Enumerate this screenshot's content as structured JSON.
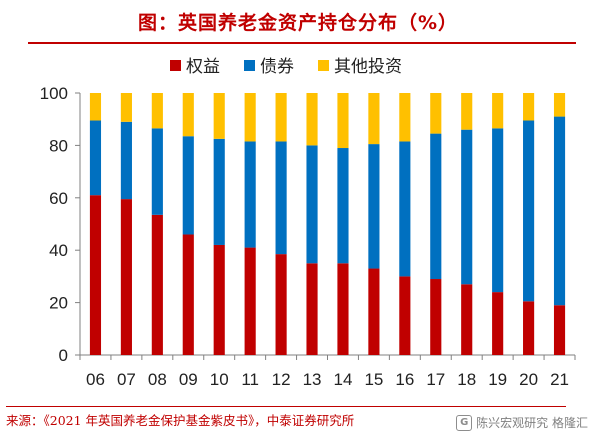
{
  "title": "图：英国养老金资产持仓分布（%）",
  "source": "来源：《2021 年英国养老金保护基金紫皮书》，中泰证券研究所",
  "watermark": "陈兴宏观研究 格隆汇",
  "chart_data": {
    "type": "bar",
    "stacked": true,
    "categories": [
      "06",
      "07",
      "08",
      "09",
      "10",
      "11",
      "12",
      "13",
      "14",
      "15",
      "16",
      "17",
      "18",
      "19",
      "20",
      "21"
    ],
    "series": [
      {
        "name": "权益",
        "color": "#c00000",
        "values": [
          61,
          59.5,
          53.5,
          46,
          42,
          41,
          38.5,
          35,
          35,
          33,
          30,
          29,
          27,
          24,
          20.5,
          19
        ]
      },
      {
        "name": "债券",
        "color": "#0070c0",
        "values": [
          28.5,
          29.5,
          33,
          37.5,
          40.5,
          40.5,
          43,
          45,
          44,
          47.5,
          51.5,
          55.5,
          59,
          62.5,
          69,
          72
        ]
      },
      {
        "name": "其他投资",
        "color": "#ffc000",
        "values": [
          10.5,
          11,
          13.5,
          16.5,
          17.5,
          18.5,
          18.5,
          20,
          21,
          19.5,
          18.5,
          15.5,
          14,
          13.5,
          10.5,
          9
        ]
      }
    ],
    "ylim": [
      0,
      100
    ],
    "yticks": [
      0,
      20,
      40,
      60,
      80,
      100
    ],
    "legend_position": "top-center",
    "grid": false
  }
}
